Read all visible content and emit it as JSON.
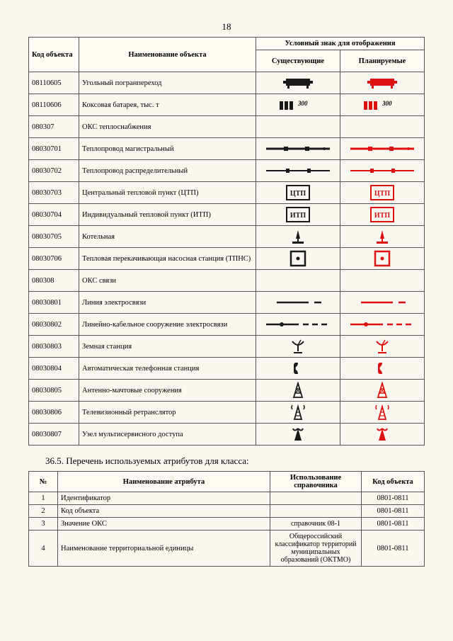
{
  "page_number": "18",
  "table1": {
    "headers": {
      "code": "Код объекта",
      "name": "Наименование объекта",
      "symbol_group": "Условный знак для отображения",
      "existing": "Существующие",
      "planned": "Планируемые"
    },
    "rows": [
      {
        "code": "08110605",
        "name": "Угольный погранпереход",
        "sym": "coal"
      },
      {
        "code": "08110606",
        "name": "Коксовая батарея, тыс. т",
        "sym": "coke",
        "label": "300"
      },
      {
        "code": "080307",
        "name": "ОКС теплоснабжения",
        "sym": "none"
      },
      {
        "code": "08030701",
        "name": "Теплопровод магистральный",
        "sym": "pipe-main"
      },
      {
        "code": "08030702",
        "name": "Теплопровод распределительный",
        "sym": "pipe-dist"
      },
      {
        "code": "08030703",
        "name": "Центральный тепловой пункт (ЦТП)",
        "sym": "box",
        "label": "ЦТП"
      },
      {
        "code": "08030704",
        "name": "Индивидуальный тепловой пункт (ИТП)",
        "sym": "box",
        "label": "ИТП"
      },
      {
        "code": "08030705",
        "name": "Котельная",
        "sym": "boiler"
      },
      {
        "code": "08030706",
        "name": "Тепловая перекачивающая насосная станция (ТПНС)",
        "sym": "dotbox"
      },
      {
        "code": "080308",
        "name": "ОКС связи",
        "sym": "none"
      },
      {
        "code": "08030801",
        "name": "Линия электросвязи",
        "sym": "line"
      },
      {
        "code": "08030802",
        "name": "Линейно-кабельное сооружение электросвязи",
        "sym": "cable"
      },
      {
        "code": "08030803",
        "name": "Земная станция",
        "sym": "dish"
      },
      {
        "code": "08030804",
        "name": "Автоматическая телефонная станция",
        "sym": "phone"
      },
      {
        "code": "08030805",
        "name": "Антенно-мачтовые сооружения",
        "sym": "tower"
      },
      {
        "code": "08030806",
        "name": "Телевизионный ретранслятор",
        "sym": "tv-tower"
      },
      {
        "code": "08030807",
        "name": "Узел мультисервисного доступа",
        "sym": "node"
      }
    ]
  },
  "section_heading": "36.5.   Перечень используемых атрибутов для класса:",
  "table2": {
    "headers": {
      "num": "№",
      "name": "Наименование атрибута",
      "ref": "Использование справочника",
      "code": "Код объекта"
    },
    "rows": [
      {
        "num": "1",
        "name": "Идентификатор",
        "ref": "",
        "code": "0801-0811"
      },
      {
        "num": "2",
        "name": "Код объекта",
        "ref": "",
        "code": "0801-0811"
      },
      {
        "num": "3",
        "name": "Значение ОКС",
        "ref": "справочник 08-1",
        "code": "0801-0811"
      },
      {
        "num": "4",
        "name": "Наименование территориальной единицы",
        "ref": "Общероссийский классификатор территорий муниципальных образований (ОКТМО)",
        "code": "0801-0811"
      }
    ]
  },
  "colors": {
    "existing": "#1a1a1a",
    "planned": "#d11"
  }
}
